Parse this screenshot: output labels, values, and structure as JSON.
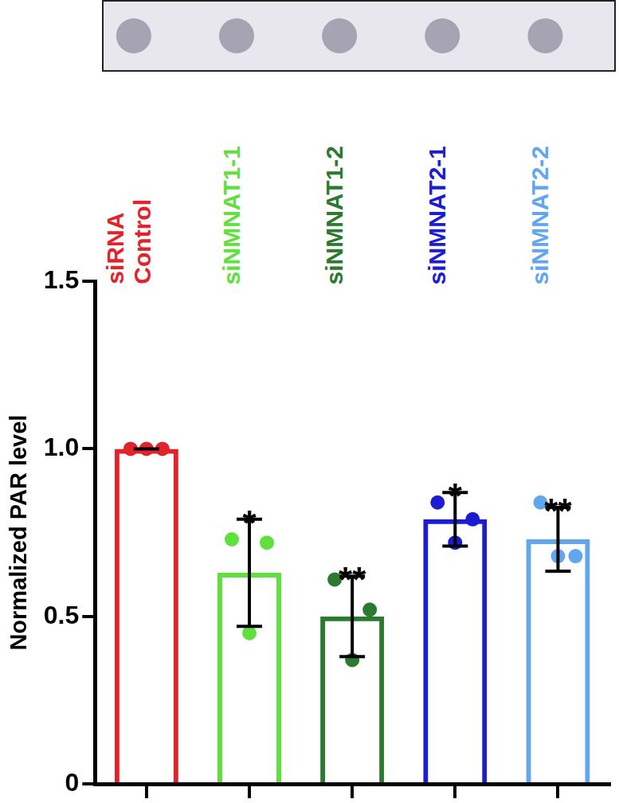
{
  "chart_data": {
    "type": "bar",
    "categories": [
      "siRNA Control",
      "siNMNAT1-1",
      "siNMNAT1-2",
      "siNMNAT2-1",
      "siNMNAT2-2"
    ],
    "values": [
      1.0,
      0.63,
      0.5,
      0.79,
      0.73
    ],
    "errors": [
      0,
      0.16,
      0.12,
      0.08,
      0.095
    ],
    "points": [
      [
        1.0,
        1.0,
        1.0
      ],
      [
        0.73,
        0.72,
        0.45
      ],
      [
        0.61,
        0.52,
        0.37
      ],
      [
        0.84,
        0.79,
        0.72
      ],
      [
        0.84,
        0.68,
        0.68
      ]
    ],
    "significance": [
      null,
      "*",
      "**",
      "*",
      "**"
    ],
    "colors": [
      "#e3232c",
      "#5fe03c",
      "#2b7a2f",
      "#1c1cd0",
      "#62a6ee"
    ],
    "y_label": "Normalized PAR level",
    "ylim": [
      0,
      1.5
    ],
    "yticks": [
      0,
      0.5,
      {
        "value": 1,
        "label": "1.0"
      },
      1.5
    ],
    "grid": false,
    "tick_labels": "y"
  }
}
